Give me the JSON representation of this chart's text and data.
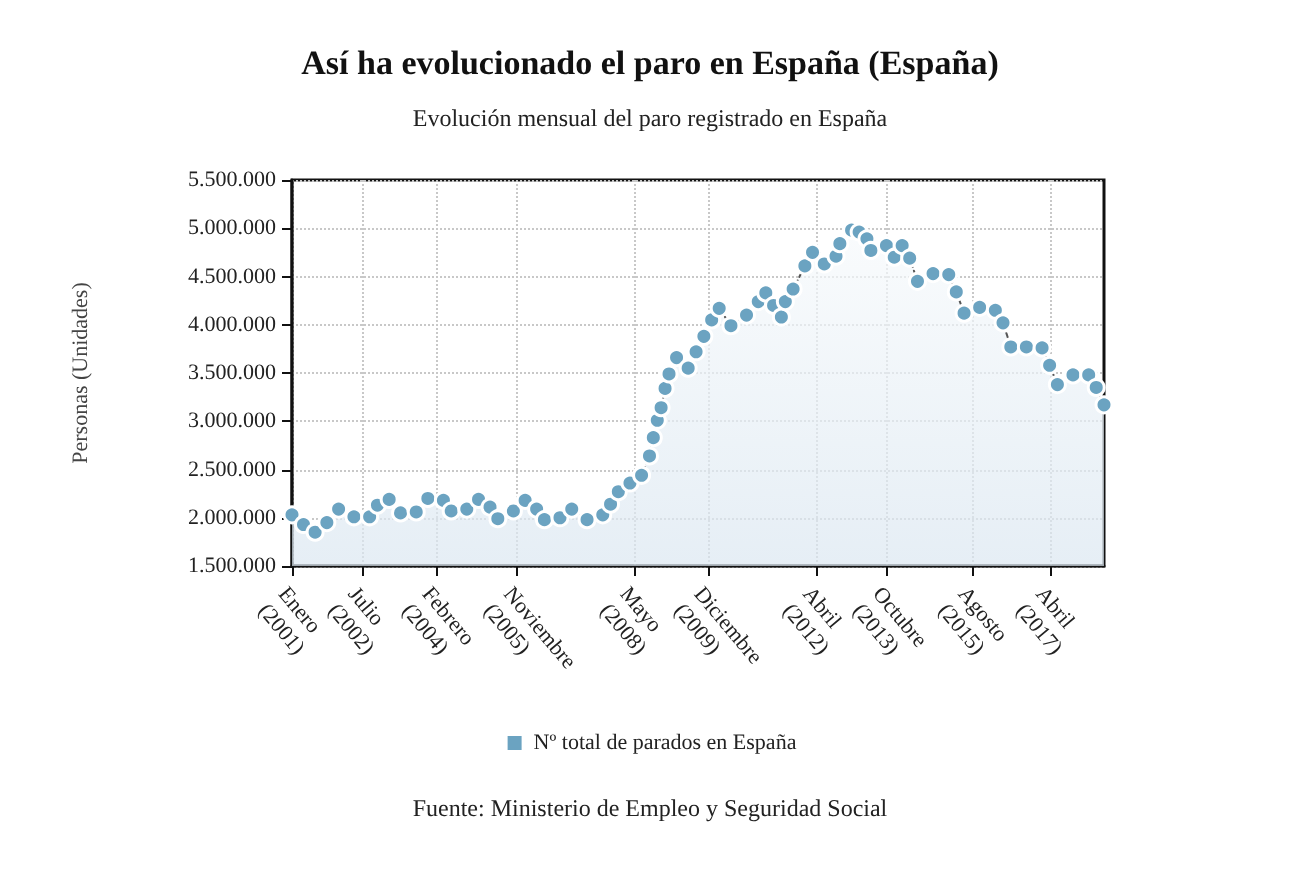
{
  "chart_data": {
    "type": "area",
    "title": "Así ha evolucionado el paro en España (España)",
    "subtitle": "Evolución mensual del paro registrado en España",
    "ylabel": "Personas (Unidades)",
    "annotations": [
      "Fuente: Ministerio de Empleo y Seguridad Social"
    ],
    "x": [
      "2001-01",
      "2001-04",
      "2001-07",
      "2001-10",
      "2002-01",
      "2002-05",
      "2002-09",
      "2002-11",
      "2003-02",
      "2003-05",
      "2003-09",
      "2003-12",
      "2004-04",
      "2004-06",
      "2004-10",
      "2005-01",
      "2005-04",
      "2005-06",
      "2005-10",
      "2006-01",
      "2006-04",
      "2006-06",
      "2006-10",
      "2007-01",
      "2007-05",
      "2007-09",
      "2007-11",
      "2008-01",
      "2008-04",
      "2008-07",
      "2008-09",
      "2008-10",
      "2008-11",
      "2008-12",
      "2009-01",
      "2009-02",
      "2009-04",
      "2009-07",
      "2009-09",
      "2009-11",
      "2010-01",
      "2010-03",
      "2010-06",
      "2010-10",
      "2011-01",
      "2011-03",
      "2011-05",
      "2011-07",
      "2011-08",
      "2011-10",
      "2012-01",
      "2012-03",
      "2012-06",
      "2012-09",
      "2012-10",
      "2013-01",
      "2013-03",
      "2013-05",
      "2013-06",
      "2013-10",
      "2013-12",
      "2014-02",
      "2014-04",
      "2014-06",
      "2014-10",
      "2015-02",
      "2015-04",
      "2015-06",
      "2015-10",
      "2016-02",
      "2016-04",
      "2016-06",
      "2016-10",
      "2017-02",
      "2017-04",
      "2017-06",
      "2017-10",
      "2018-02",
      "2018-04",
      "2018-06"
    ],
    "series": [
      {
        "name": "Nº total de parados en España",
        "color": "#6ba3c1",
        "values": [
          2030000,
          1930000,
          1850000,
          1950000,
          2090000,
          2010000,
          2010000,
          2130000,
          2190000,
          2050000,
          2060000,
          2200000,
          2180000,
          2070000,
          2090000,
          2190000,
          2110000,
          1990000,
          2070000,
          2180000,
          2090000,
          1980000,
          2000000,
          2090000,
          1980000,
          2030000,
          2140000,
          2270000,
          2360000,
          2440000,
          2640000,
          2830000,
          3010000,
          3140000,
          3340000,
          3490000,
          3660000,
          3550000,
          3720000,
          3880000,
          4050000,
          4170000,
          3990000,
          4100000,
          4240000,
          4330000,
          4200000,
          4080000,
          4240000,
          4370000,
          4610000,
          4750000,
          4630000,
          4710000,
          4840000,
          4980000,
          4960000,
          4890000,
          4770000,
          4820000,
          4700000,
          4820000,
          4690000,
          4450000,
          4530000,
          4520000,
          4340000,
          4120000,
          4180000,
          4150000,
          4020000,
          3770000,
          3770000,
          3760000,
          3580000,
          3380000,
          3480000,
          3480000,
          3350000,
          3170000
        ]
      }
    ],
    "xlim": [
      "2001-01",
      "2018-06"
    ],
    "xticks": [
      {
        "value": "2001-01",
        "label": "Enero\n(2001)"
      },
      {
        "value": "2002-07",
        "label": "Julio\n(2002)"
      },
      {
        "value": "2004-02",
        "label": "Febrero\n(2004)"
      },
      {
        "value": "2005-11",
        "label": "Noviembre\n(2005)"
      },
      {
        "value": "2008-05",
        "label": "Mayo\n(2008)"
      },
      {
        "value": "2009-12",
        "label": "Diciembre\n(2009)"
      },
      {
        "value": "2012-04",
        "label": "Abril\n(2012)"
      },
      {
        "value": "2013-10",
        "label": "Octubre\n(2013)"
      },
      {
        "value": "2015-08",
        "label": "Agosto\n(2015)"
      },
      {
        "value": "2017-04",
        "label": "Abril\n(2017)"
      }
    ],
    "ylim": [
      1500000,
      5500000
    ],
    "yticks": [
      {
        "value": 1500000,
        "label": "1.500.000"
      },
      {
        "value": 2000000,
        "label": "2.000.000"
      },
      {
        "value": 2500000,
        "label": "2.500.000"
      },
      {
        "value": 3000000,
        "label": "3.000.000"
      },
      {
        "value": 3500000,
        "label": "3.500.000"
      },
      {
        "value": 4000000,
        "label": "4.000.000"
      },
      {
        "value": 4500000,
        "label": "4.500.000"
      },
      {
        "value": 5000000,
        "label": "5.000.000"
      },
      {
        "value": 5500000,
        "label": "5.500.000"
      }
    ],
    "grid": true,
    "legend": "bottom",
    "marker": "circle",
    "line_style": "dashed"
  }
}
